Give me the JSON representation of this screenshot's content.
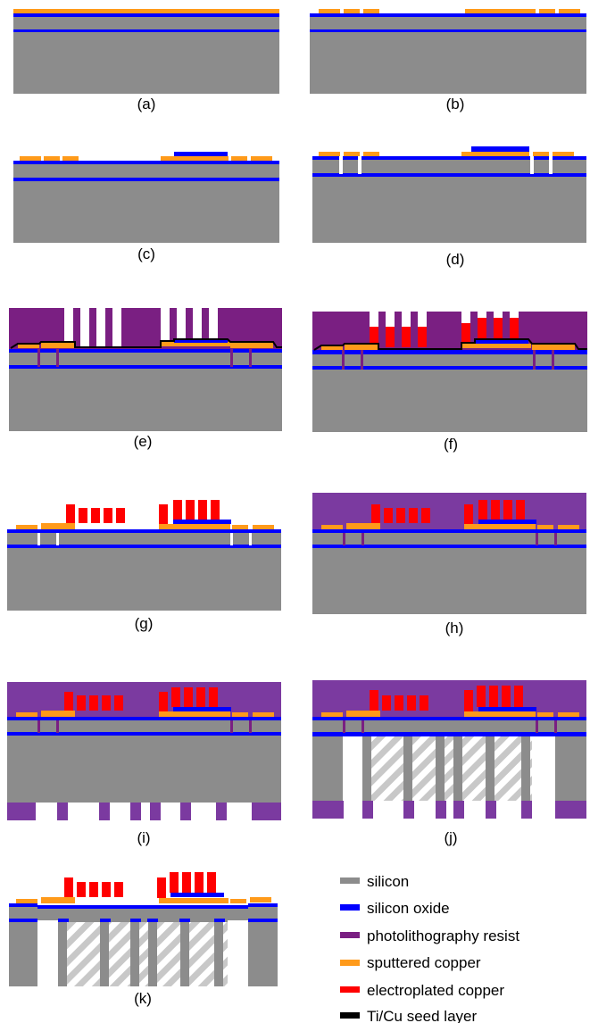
{
  "figure": {
    "panel_labels": [
      "(a)",
      "(b)",
      "(c)",
      "(d)",
      "(e)",
      "(f)",
      "(g)",
      "(h)",
      "(i)",
      "(j)",
      "(k)"
    ]
  },
  "legend": {
    "items": [
      {
        "label": "silicon",
        "color": "#8c8c8c"
      },
      {
        "label": "silicon oxide",
        "color": "#0000ff"
      },
      {
        "label": "photolithography resist",
        "color": "#7a1f82"
      },
      {
        "label": "sputtered copper",
        "color": "#ff9a1a"
      },
      {
        "label": "electroplated copper",
        "color": "#ff0000"
      },
      {
        "label": "Ti/Cu seed layer",
        "color": "#000000"
      }
    ]
  },
  "colors": {
    "silicon": "#8c8c8c",
    "oxide": "#0000ff",
    "resist": "#7a1f82",
    "resist_light": "#7b3aa0",
    "sputtered_copper": "#ff9a1a",
    "electroplated_copper": "#ff0000",
    "seed_layer": "#000000",
    "hatch": "#cfcfcf"
  }
}
